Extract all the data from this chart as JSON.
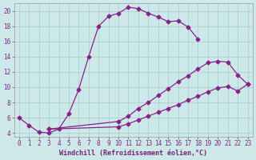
{
  "xlabel": "Windchill (Refroidissement éolien,°C)",
  "bg_color": "#cce8e8",
  "line_color": "#882288",
  "grid_color": "#aacccc",
  "xlim": [
    -0.5,
    23.5
  ],
  "ylim": [
    3.5,
    21.0
  ],
  "xtick_labels": [
    "0",
    "1",
    "2",
    "3",
    "4",
    "5",
    "6",
    "7",
    "8",
    "9",
    "10",
    "11",
    "12",
    "13",
    "14",
    "15",
    "16",
    "17",
    "18",
    "19",
    "20",
    "21",
    "22",
    "23"
  ],
  "xtick_vals": [
    0,
    1,
    2,
    3,
    4,
    5,
    6,
    7,
    8,
    9,
    10,
    11,
    12,
    13,
    14,
    15,
    16,
    17,
    18,
    19,
    20,
    21,
    22,
    23
  ],
  "yticks": [
    4,
    6,
    8,
    10,
    12,
    14,
    16,
    18,
    20
  ],
  "series1_x": [
    0,
    1,
    2,
    3,
    4,
    5,
    6,
    7,
    8,
    9,
    10,
    11,
    12,
    13,
    14,
    15,
    16,
    17,
    18
  ],
  "series1_y": [
    6.0,
    5.0,
    4.1,
    4.0,
    4.5,
    6.5,
    9.7,
    14.0,
    18.0,
    19.3,
    19.7,
    20.5,
    20.3,
    19.7,
    19.2,
    18.6,
    18.7,
    17.9,
    16.3
  ],
  "series2_x": [
    3,
    10,
    11,
    12,
    13,
    14,
    15,
    16,
    17,
    18,
    19,
    20,
    21,
    22,
    23
  ],
  "series2_y": [
    4.5,
    5.5,
    6.2,
    7.2,
    8.0,
    8.9,
    9.8,
    10.7,
    11.5,
    12.4,
    13.2,
    13.4,
    13.3,
    11.6,
    10.4
  ],
  "series3_x": [
    3,
    10,
    11,
    12,
    13,
    14,
    15,
    16,
    17,
    18,
    19,
    20,
    21,
    22,
    23
  ],
  "series3_y": [
    4.5,
    4.8,
    5.2,
    5.7,
    6.2,
    6.7,
    7.2,
    7.7,
    8.3,
    8.8,
    9.4,
    9.9,
    10.1,
    9.5,
    10.4
  ],
  "xlabel_color": "#772277",
  "xlabel_fontsize": 6.0,
  "tick_fontsize": 5.5,
  "marker_size": 2.5,
  "line_width": 0.9
}
